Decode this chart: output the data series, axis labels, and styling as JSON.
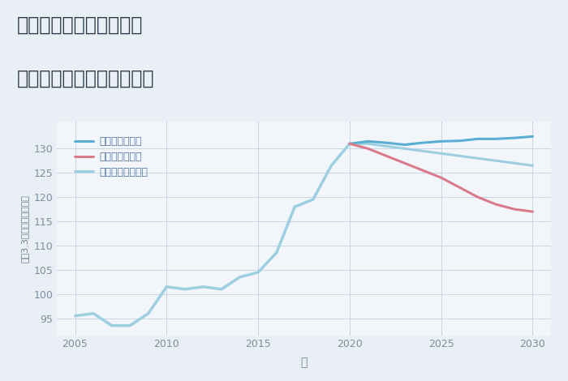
{
  "title_line1": "兵庫県姫路市南新在家の",
  "title_line2": "中古マンションの価格推移",
  "xlabel": "年",
  "ylabel": "坪（3.3㎡）単価（万円）",
  "xlim": [
    2004.0,
    2031.0
  ],
  "ylim": [
    91.5,
    135.5
  ],
  "yticks": [
    95,
    100,
    105,
    110,
    115,
    120,
    125,
    130
  ],
  "xticks": [
    2005,
    2010,
    2015,
    2020,
    2025,
    2030
  ],
  "fig_bg_color": "#eaeff5",
  "plot_bg_color": "#f2f6fa",
  "grid_color": "#c5d5e5",
  "legend_labels": [
    "グッドシナリオ",
    "バッドシナリオ",
    "ノーマルシナリオ"
  ],
  "color_good": "#5aaed4",
  "color_bad": "#d97b8a",
  "color_normal": "#9ecfe0",
  "years_history": [
    2005,
    2006,
    2007,
    2008,
    2009,
    2010,
    2011,
    2012,
    2013,
    2014,
    2015,
    2016,
    2017,
    2018,
    2019,
    2020
  ],
  "values_history": [
    95.5,
    96.0,
    93.5,
    93.5,
    96.0,
    101.5,
    101.0,
    101.5,
    101.0,
    103.5,
    104.5,
    108.5,
    118.0,
    119.5,
    126.5,
    131.0
  ],
  "years_future": [
    2020,
    2021,
    2022,
    2023,
    2024,
    2025,
    2026,
    2027,
    2028,
    2029,
    2030
  ],
  "values_good": [
    131.0,
    131.5,
    131.2,
    130.8,
    131.2,
    131.5,
    131.6,
    132.0,
    132.0,
    132.2,
    132.5
  ],
  "values_bad": [
    131.0,
    130.0,
    128.5,
    127.0,
    125.5,
    124.0,
    122.0,
    120.0,
    118.5,
    117.5,
    117.0
  ],
  "values_normal": [
    131.0,
    131.0,
    130.5,
    130.0,
    129.5,
    129.0,
    128.5,
    128.0,
    127.5,
    127.0,
    126.5
  ],
  "title_fontsize": 17,
  "tick_fontsize": 9,
  "ylabel_fontsize": 8,
  "xlabel_fontsize": 10
}
